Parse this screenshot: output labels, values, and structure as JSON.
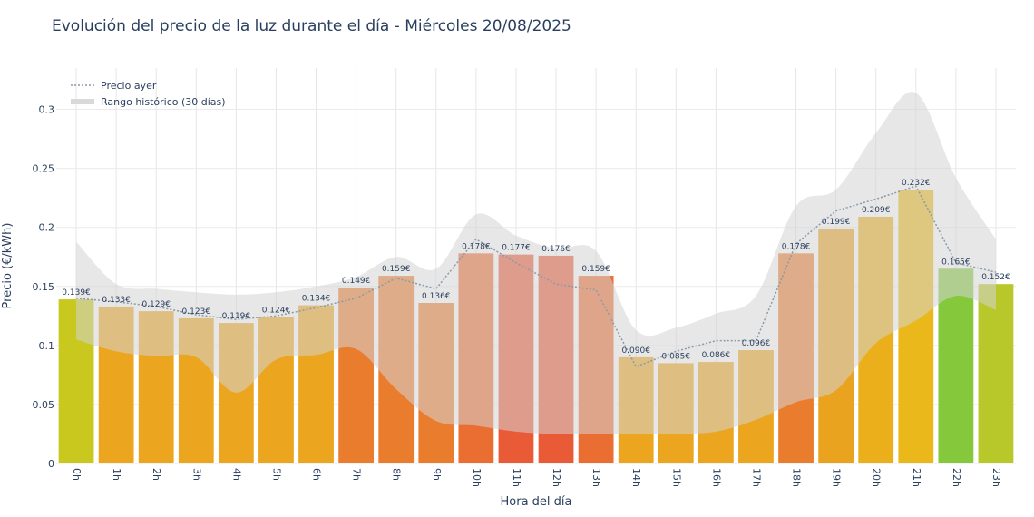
{
  "title": "Evolución del precio de la luz durante el día - Miércoles 20/08/2025",
  "chart_data": {
    "type": "bar",
    "xlabel": "Hora del día",
    "ylabel": "Precio (€/kWh)",
    "ylim": [
      0,
      0.335
    ],
    "y_ticks": [
      0,
      0.05,
      0.1,
      0.15,
      0.2,
      0.25,
      0.3
    ],
    "y_tick_labels": [
      "0",
      "0.05",
      "0.1",
      "0.15",
      "0.2",
      "0.25",
      "0.3"
    ],
    "grid": true,
    "legend_position": "top-left",
    "categories": [
      "0h",
      "1h",
      "2h",
      "3h",
      "4h",
      "5h",
      "6h",
      "7h",
      "8h",
      "9h",
      "10h",
      "11h",
      "12h",
      "13h",
      "14h",
      "15h",
      "16h",
      "17h",
      "18h",
      "19h",
      "20h",
      "21h",
      "22h",
      "23h"
    ],
    "series": [
      {
        "values": [
          0.139,
          0.133,
          0.129,
          0.123,
          0.119,
          0.124,
          0.134,
          0.149,
          0.159,
          0.136,
          0.178,
          0.177,
          0.176,
          0.159,
          0.09,
          0.085,
          0.086,
          0.096,
          0.178,
          0.199,
          0.209,
          0.232,
          0.165,
          0.152
        ],
        "value_labels": [
          "0.139€",
          "0.133€",
          "0.129€",
          "0.123€",
          "0.119€",
          "0.124€",
          "0.134€",
          "0.149€",
          "0.159€",
          "0.136€",
          "0.178€",
          "0.177€",
          "0.176€",
          "0.159€",
          "0.090€",
          "0.085€",
          "0.086€",
          "0.096€",
          "0.178€",
          "0.199€",
          "0.209€",
          "0.232€",
          "0.165€",
          "0.152€"
        ],
        "colors": [
          "#c8c81e",
          "#eca51e",
          "#eca51e",
          "#eca51e",
          "#eca51e",
          "#eca51e",
          "#eca51e",
          "#ea7d2d",
          "#ea7d2d",
          "#ea7d2d",
          "#ea6e32",
          "#e95a36",
          "#e95a36",
          "#ea6e32",
          "#eca51e",
          "#eca51e",
          "#eca51e",
          "#eca51e",
          "#ea7d2d",
          "#eaa31f",
          "#eaaf1b",
          "#eab81a",
          "#86c83c",
          "#b8c82a"
        ]
      },
      {
        "name": "Precio ayer",
        "type": "line",
        "style": "dotted",
        "color": "#8a9aa8",
        "values": [
          0.14,
          0.137,
          0.133,
          0.126,
          0.122,
          0.125,
          0.132,
          0.14,
          0.157,
          0.148,
          0.19,
          0.17,
          0.152,
          0.147,
          0.082,
          0.095,
          0.104,
          0.104,
          0.186,
          0.214,
          0.224,
          0.235,
          0.17,
          0.162
        ]
      },
      {
        "name": "Rango histórico (30 días)",
        "type": "area-band",
        "color": "#d4d4d4",
        "upper": [
          0.188,
          0.152,
          0.148,
          0.145,
          0.143,
          0.145,
          0.15,
          0.158,
          0.175,
          0.165,
          0.211,
          0.193,
          0.182,
          0.18,
          0.113,
          0.115,
          0.127,
          0.142,
          0.218,
          0.232,
          0.28,
          0.314,
          0.242,
          0.19
        ],
        "lower": [
          0.105,
          0.095,
          0.091,
          0.09,
          0.06,
          0.088,
          0.092,
          0.097,
          0.063,
          0.036,
          0.032,
          0.027,
          0.025,
          0.025,
          0.025,
          0.025,
          0.027,
          0.037,
          0.052,
          0.062,
          0.102,
          0.121,
          0.142,
          0.13
        ]
      }
    ]
  }
}
